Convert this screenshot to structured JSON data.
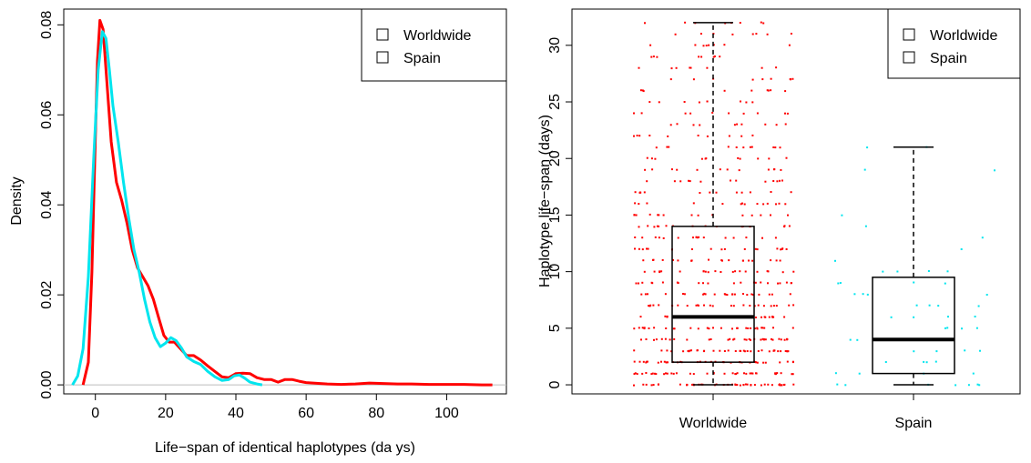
{
  "chart_data": [
    {
      "type": "line",
      "subtype": "density",
      "xlabel": "Life−span of identical haplotypes (da ys)",
      "ylabel": "Density",
      "xlim": [
        -9,
        117
      ],
      "ylim": [
        -0.002,
        0.0835
      ],
      "xticks": [
        "0",
        "20",
        "40",
        "60",
        "80",
        "100"
      ],
      "xtick_values": [
        0,
        20,
        40,
        60,
        80,
        100
      ],
      "yticks": [
        "0.00",
        "0.02",
        "0.04",
        "0.06",
        "0.08"
      ],
      "ytick_values": [
        0,
        0.02,
        0.04,
        0.06,
        0.08
      ],
      "baseline": 0,
      "legend": {
        "position": "top-right",
        "entries": [
          "Worldwide",
          "Spain"
        ]
      },
      "series": [
        {
          "name": "Worldwide",
          "color": "#ff0000",
          "points": [
            [
              -3.5,
              0
            ],
            [
              -2,
              0.005
            ],
            [
              -1,
              0.025
            ],
            [
              0,
              0.055
            ],
            [
              0.6,
              0.072
            ],
            [
              1.3,
              0.081
            ],
            [
              2.2,
              0.079
            ],
            [
              3.2,
              0.068
            ],
            [
              4.5,
              0.054
            ],
            [
              6,
              0.045
            ],
            [
              7.5,
              0.041
            ],
            [
              9,
              0.036
            ],
            [
              10.5,
              0.03
            ],
            [
              12,
              0.026
            ],
            [
              13.5,
              0.024
            ],
            [
              15,
              0.022
            ],
            [
              16.5,
              0.019
            ],
            [
              18,
              0.015
            ],
            [
              19.5,
              0.011
            ],
            [
              21,
              0.0095
            ],
            [
              22.5,
              0.0095
            ],
            [
              24,
              0.0082
            ],
            [
              26,
              0.0065
            ],
            [
              28,
              0.0065
            ],
            [
              30,
              0.0055
            ],
            [
              32,
              0.0042
            ],
            [
              34,
              0.003
            ],
            [
              36,
              0.0018
            ],
            [
              38,
              0.0016
            ],
            [
              40,
              0.0025
            ],
            [
              42,
              0.0026
            ],
            [
              44,
              0.0025
            ],
            [
              46,
              0.0016
            ],
            [
              48,
              0.0012
            ],
            [
              50,
              0.0012
            ],
            [
              52,
              0.0006
            ],
            [
              54,
              0.0012
            ],
            [
              56,
              0.0012
            ],
            [
              58,
              0.0008
            ],
            [
              60,
              0.0005
            ],
            [
              62,
              0.0004
            ],
            [
              66,
              0.0002
            ],
            [
              70,
              0.0001
            ],
            [
              74,
              0.0002
            ],
            [
              78,
              0.0004
            ],
            [
              82,
              0.0003
            ],
            [
              86,
              0.0002
            ],
            [
              90,
              0.0002
            ],
            [
              95,
              0.0001
            ],
            [
              100,
              0.0001
            ],
            [
              105,
              0.0001
            ],
            [
              110,
              0.0
            ],
            [
              113,
              0.0
            ]
          ]
        },
        {
          "name": "Spain",
          "color": "#00e5ee",
          "points": [
            [
              -6.5,
              0
            ],
            [
              -5,
              0.002
            ],
            [
              -3.5,
              0.008
            ],
            [
              -2,
              0.024
            ],
            [
              -0.5,
              0.05
            ],
            [
              0.8,
              0.07
            ],
            [
              2,
              0.0785
            ],
            [
              3,
              0.077
            ],
            [
              4,
              0.07
            ],
            [
              5,
              0.062
            ],
            [
              6.5,
              0.054
            ],
            [
              8,
              0.045
            ],
            [
              9.5,
              0.037
            ],
            [
              11,
              0.03
            ],
            [
              12.5,
              0.025
            ],
            [
              14,
              0.019
            ],
            [
              15.5,
              0.014
            ],
            [
              17,
              0.0105
            ],
            [
              18.5,
              0.0085
            ],
            [
              20,
              0.0093
            ],
            [
              21.5,
              0.0105
            ],
            [
              23,
              0.0098
            ],
            [
              24.5,
              0.0082
            ],
            [
              26,
              0.0062
            ],
            [
              28,
              0.0052
            ],
            [
              30,
              0.0045
            ],
            [
              32,
              0.003
            ],
            [
              34,
              0.0018
            ],
            [
              36,
              0.001
            ],
            [
              38,
              0.0012
            ],
            [
              39.5,
              0.002
            ],
            [
              41,
              0.0022
            ],
            [
              42.5,
              0.0015
            ],
            [
              44,
              0.0006
            ],
            [
              46,
              0.0002
            ],
            [
              47.5,
              0.0
            ]
          ]
        }
      ]
    },
    {
      "type": "boxplot",
      "ylabel": "Haplotype life−span (days)",
      "ylim": [
        -0.8,
        33.2
      ],
      "yticks": [
        "0",
        "5",
        "10",
        "15",
        "20",
        "25",
        "30"
      ],
      "ytick_values": [
        0,
        5,
        10,
        15,
        20,
        25,
        30
      ],
      "categories": [
        "Worldwide",
        "Spain"
      ],
      "legend": {
        "position": "top-right",
        "entries": [
          "Worldwide",
          "Spain"
        ]
      },
      "boxes": [
        {
          "name": "Worldwide",
          "color": "#ff0000",
          "min": 0,
          "q1": 2,
          "median": 6,
          "q3": 14,
          "max": 32,
          "point_max": 32
        },
        {
          "name": "Spain",
          "color": "#00e5ee",
          "min": 0,
          "q1": 1,
          "median": 4,
          "q3": 9.5,
          "max": 21,
          "point_max": 21
        }
      ]
    }
  ]
}
